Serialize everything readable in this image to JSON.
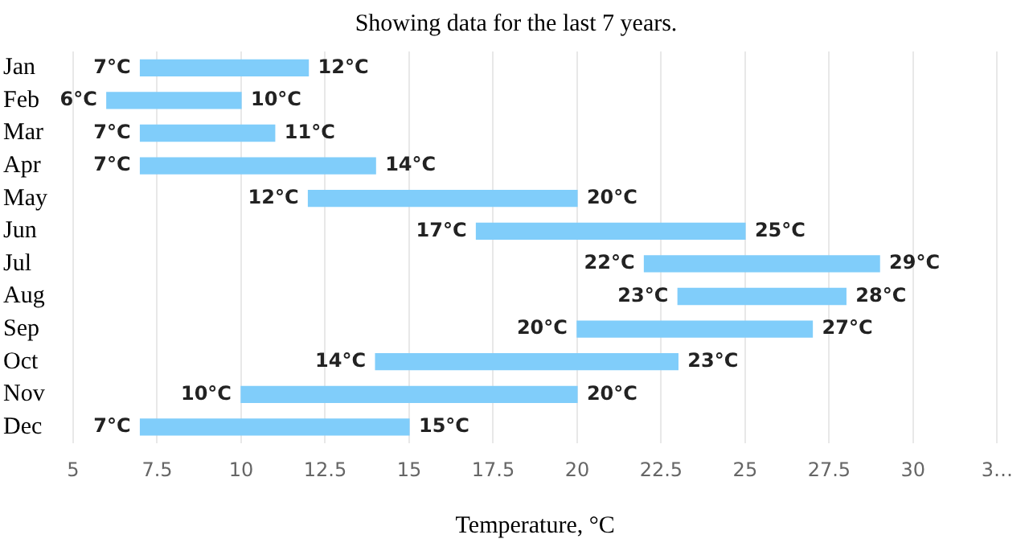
{
  "chart_data": {
    "type": "bar",
    "orientation": "horizontal",
    "title": "Showing data for the last 7 years.",
    "xlabel": "Temperature, °C",
    "categories": [
      "Jan",
      "Feb",
      "Mar",
      "Apr",
      "May",
      "Jun",
      "Jul",
      "Aug",
      "Sep",
      "Oct",
      "Nov",
      "Dec"
    ],
    "base": [
      7,
      6,
      7,
      7,
      12,
      17,
      22,
      23,
      20,
      14,
      10,
      7
    ],
    "values": [
      5,
      4,
      4,
      7,
      8,
      8,
      7,
      5,
      7,
      9,
      10,
      8
    ],
    "color": "#80cdfa",
    "xlim": [
      5,
      32.5
    ],
    "xticks": [
      5,
      7.5,
      10,
      12.5,
      15,
      17.5,
      20,
      22.5,
      25,
      27.5,
      30,
      {
        "value": 32.5,
        "label": "3…"
      }
    ],
    "grid": "x",
    "legend": false,
    "annotations": [
      {
        "text": "7°C",
        "x": 7,
        "y": "Jan"
      },
      {
        "text": "12°C",
        "x": 12,
        "y": "Jan"
      },
      {
        "text": "6°C",
        "x": 6,
        "y": "Feb"
      },
      {
        "text": "10°C",
        "x": 10,
        "y": "Feb"
      },
      {
        "text": "7°C",
        "x": 7,
        "y": "Mar"
      },
      {
        "text": "11°C",
        "x": 11,
        "y": "Mar"
      },
      {
        "text": "7°C",
        "x": 7,
        "y": "Apr"
      },
      {
        "text": "14°C",
        "x": 14,
        "y": "Apr"
      },
      {
        "text": "12°C",
        "x": 12,
        "y": "May"
      },
      {
        "text": "20°C",
        "x": 20,
        "y": "May"
      },
      {
        "text": "17°C",
        "x": 17,
        "y": "Jun"
      },
      {
        "text": "25°C",
        "x": 25,
        "y": "Jun"
      },
      {
        "text": "22°C",
        "x": 22,
        "y": "Jul"
      },
      {
        "text": "29°C",
        "x": 29,
        "y": "Jul"
      },
      {
        "text": "23°C",
        "x": 23,
        "y": "Aug"
      },
      {
        "text": "28°C",
        "x": 28,
        "y": "Aug"
      },
      {
        "text": "20°C",
        "x": 20,
        "y": "Sep"
      },
      {
        "text": "27°C",
        "x": 27,
        "y": "Sep"
      },
      {
        "text": "14°C",
        "x": 14,
        "y": "Oct"
      },
      {
        "text": "23°C",
        "x": 23,
        "y": "Oct"
      },
      {
        "text": "10°C",
        "x": 10,
        "y": "Nov"
      },
      {
        "text": "20°C",
        "x": 20,
        "y": "Nov"
      },
      {
        "text": "7°C",
        "x": 7,
        "y": "Dec"
      },
      {
        "text": "15°C",
        "x": 15,
        "y": "Dec"
      }
    ]
  }
}
